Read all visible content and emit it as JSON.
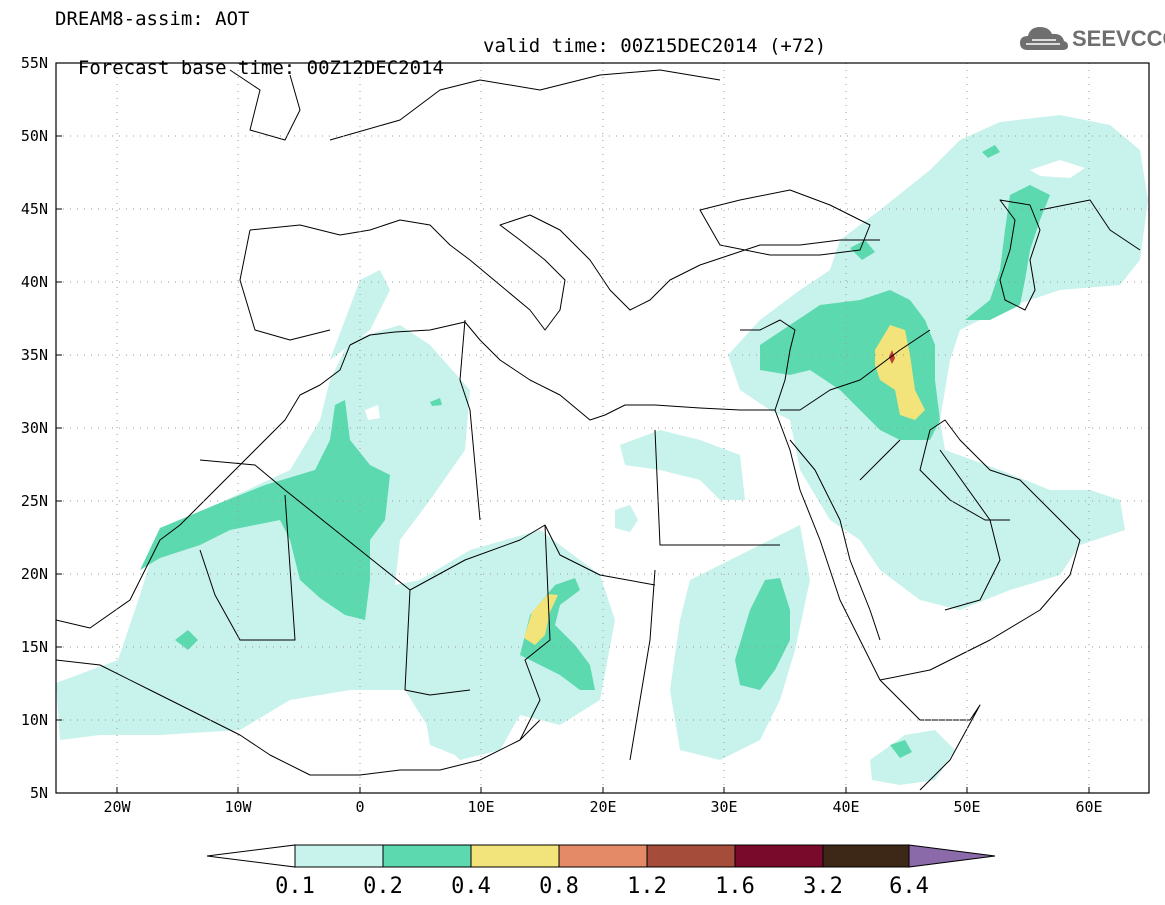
{
  "header": {
    "line1": "DREAM8-assim: AOT",
    "base_time": "Forecast base time: 00Z12DEC2014",
    "valid_time": "valid time: 00Z15DEC2014 (+72)"
  },
  "logo": {
    "text": "SEEVCCC",
    "icon": "cloud-icon"
  },
  "map": {
    "projection": "lat-lon",
    "lon_range": [
      -25,
      65
    ],
    "lat_range": [
      5,
      55
    ],
    "lat_labels": [
      "5N",
      "10N",
      "15N",
      "20N",
      "25N",
      "30N",
      "35N",
      "40N",
      "45N",
      "50N",
      "55N"
    ],
    "lon_labels": [
      "20W",
      "10W",
      "0",
      "10E",
      "20E",
      "30E",
      "40E",
      "50E",
      "60E"
    ],
    "gridlines": "dotted"
  },
  "colorbar": {
    "labels": [
      "0.1",
      "0.2",
      "0.4",
      "0.8",
      "1.2",
      "1.6",
      "3.2",
      "6.4"
    ],
    "colors": [
      "#ffffff",
      "#c8f2ec",
      "#5cd9ae",
      "#f2e47a",
      "#e48a66",
      "#a64c3a",
      "#7a0a2c",
      "#3d2717",
      "#8a6aa8"
    ]
  }
}
